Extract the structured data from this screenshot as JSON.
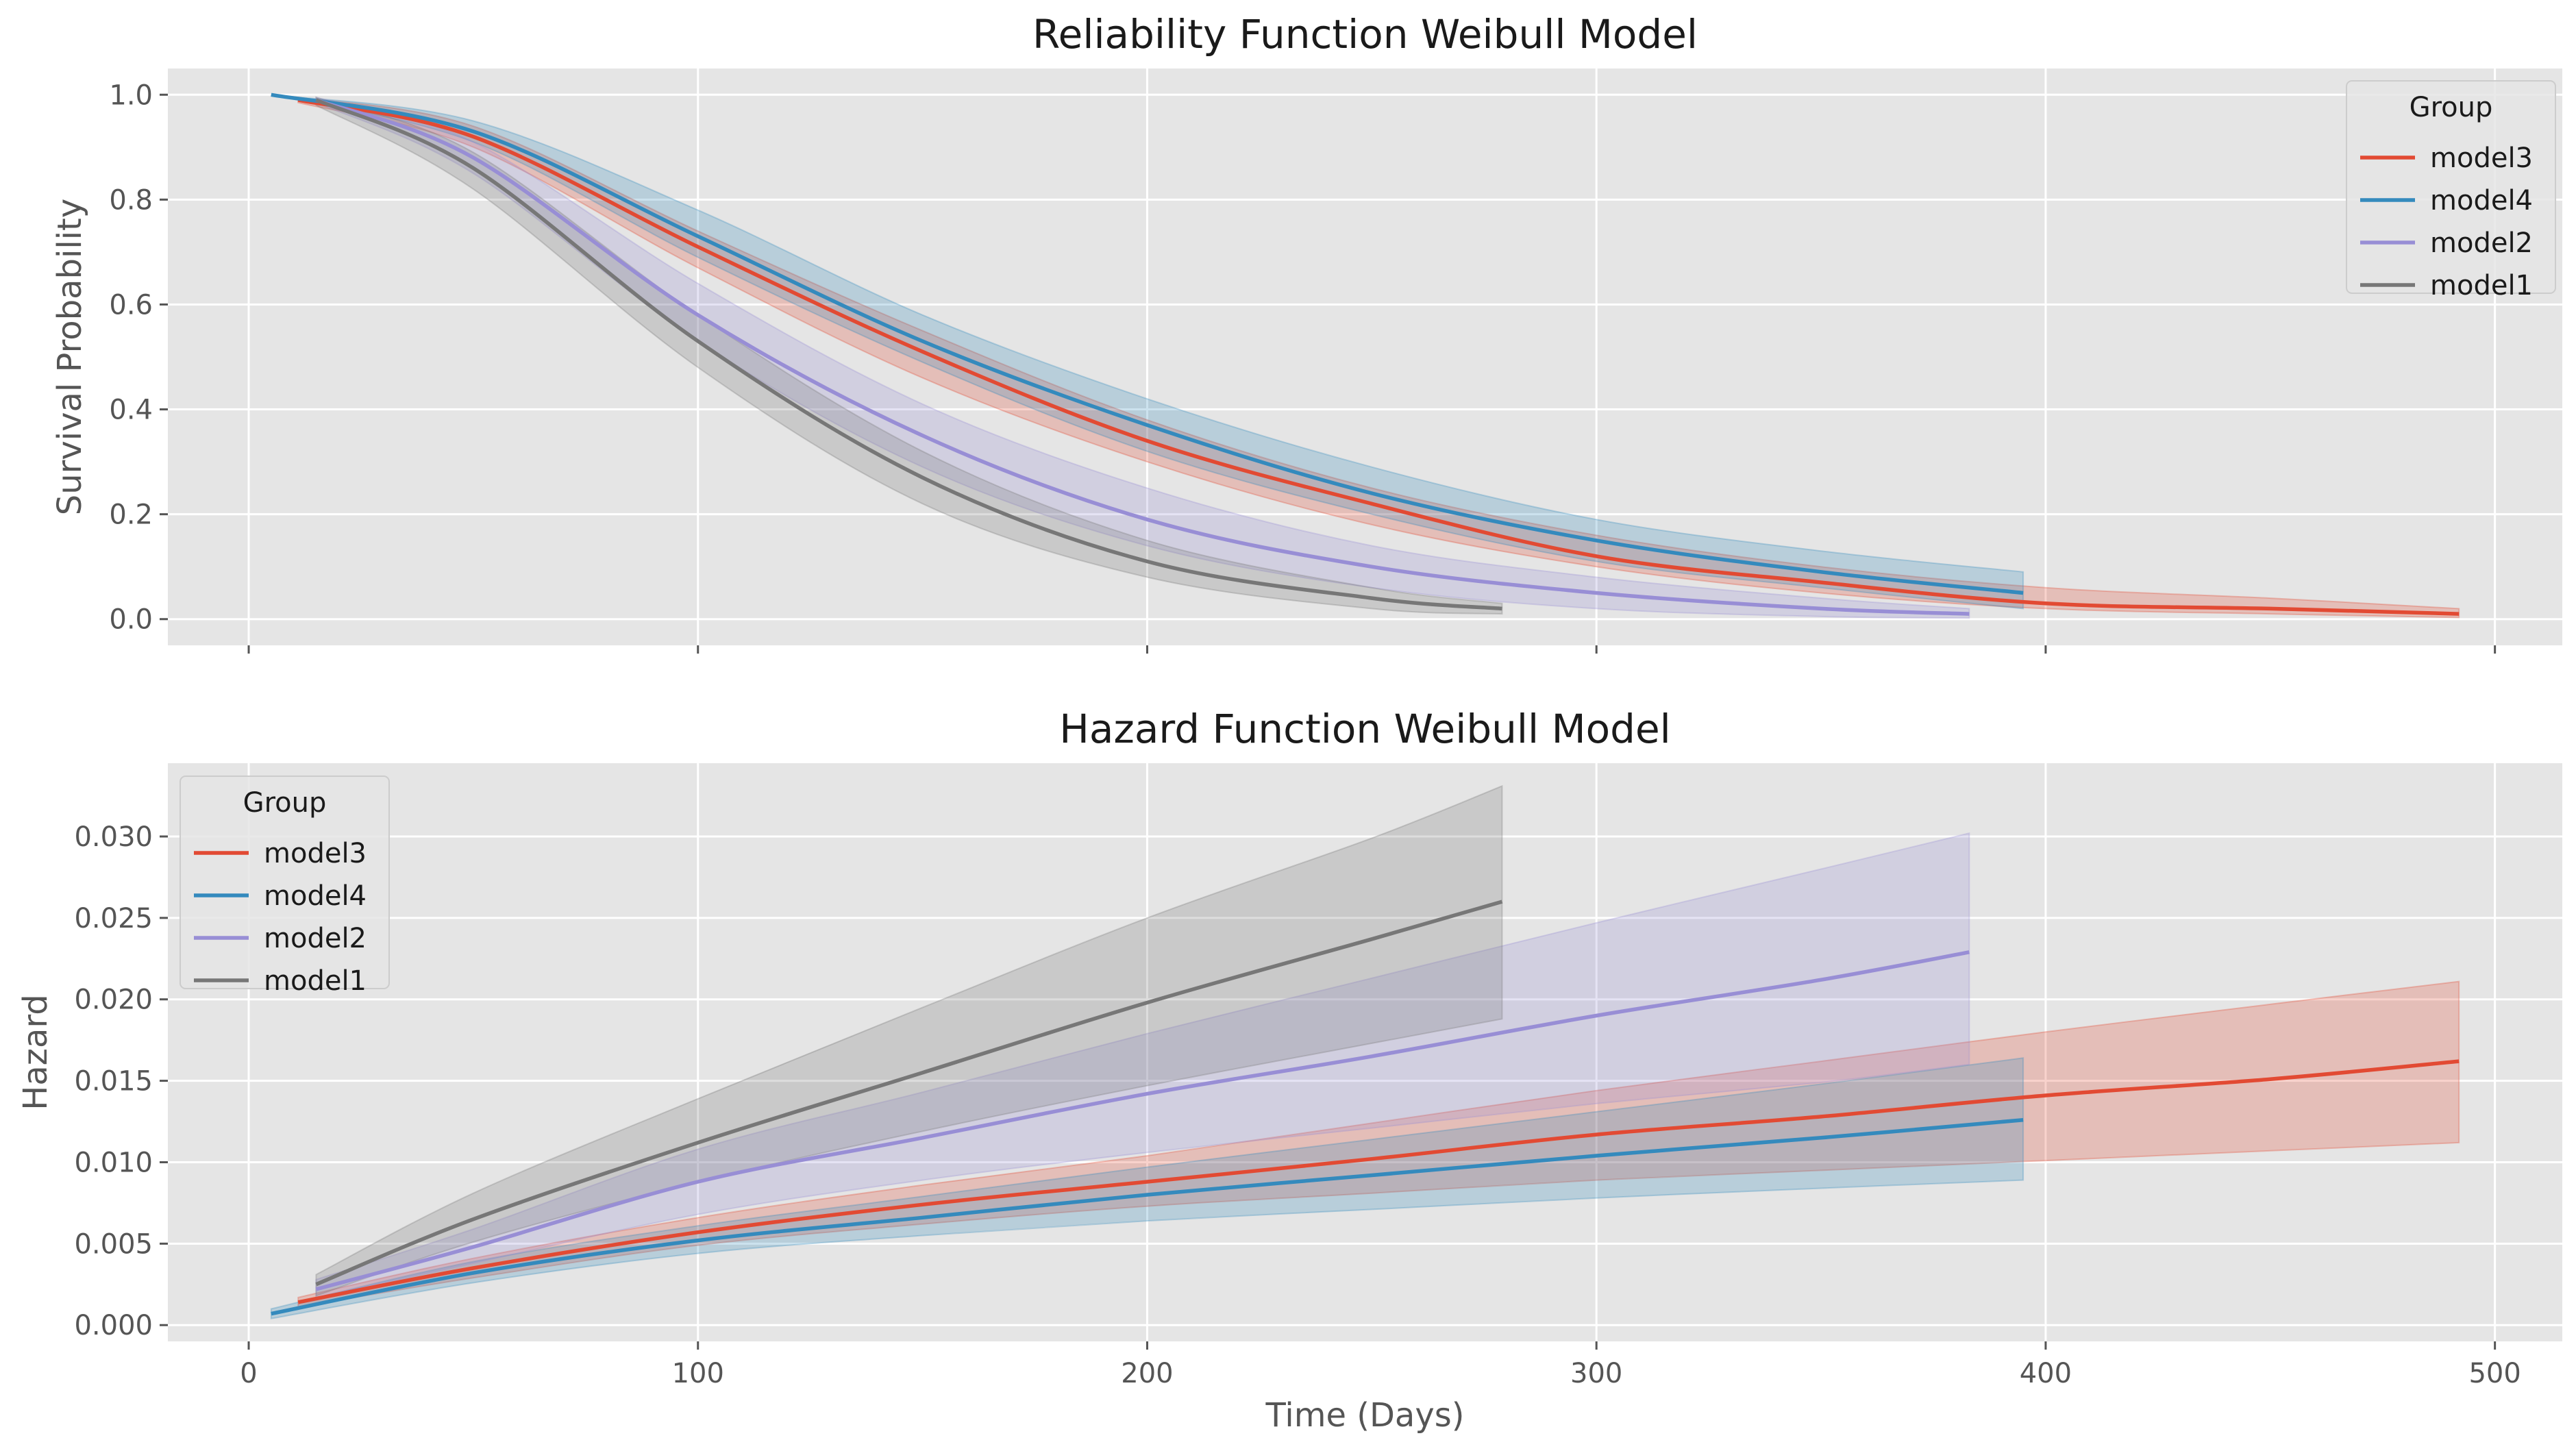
{
  "chart_data": [
    {
      "type": "line",
      "title": "Reliability Function Weibull Model",
      "xlabel": "",
      "ylabel": "Survival Probability",
      "xlim": [
        -18,
        515
      ],
      "ylim": [
        -0.05,
        1.05
      ],
      "xticks": [
        0,
        100,
        200,
        300,
        400,
        500
      ],
      "yticks": [
        0.0,
        0.2,
        0.4,
        0.6,
        0.8,
        1.0
      ],
      "ytick_labels": [
        "0.0",
        "0.2",
        "0.4",
        "0.6",
        "0.8",
        "1.0"
      ],
      "show_xtick_labels": false,
      "grid": true,
      "legend": {
        "title": "Group",
        "placement": "top-right",
        "entries": [
          "model3",
          "model4",
          "model2",
          "model1"
        ]
      },
      "series": [
        {
          "name": "model3",
          "color": "#E24A33",
          "x": [
            11,
            50,
            100,
            150,
            200,
            250,
            300,
            350,
            400,
            450,
            492
          ],
          "y": [
            0.99,
            0.92,
            0.71,
            0.51,
            0.34,
            0.22,
            0.12,
            0.07,
            0.03,
            0.02,
            0.01
          ],
          "lower": [
            0.985,
            0.9,
            0.67,
            0.46,
            0.3,
            0.18,
            0.1,
            0.05,
            0.02,
            0.01,
            0.003
          ],
          "upper": [
            0.995,
            0.94,
            0.74,
            0.55,
            0.38,
            0.25,
            0.16,
            0.1,
            0.06,
            0.04,
            0.02
          ]
        },
        {
          "name": "model4",
          "color": "#348ABD",
          "x": [
            5,
            50,
            100,
            150,
            200,
            250,
            300,
            350,
            395
          ],
          "y": [
            1.0,
            0.93,
            0.73,
            0.53,
            0.37,
            0.24,
            0.15,
            0.09,
            0.05
          ],
          "lower": [
            1.0,
            0.91,
            0.69,
            0.49,
            0.32,
            0.2,
            0.11,
            0.06,
            0.02
          ],
          "upper": [
            1.0,
            0.95,
            0.78,
            0.58,
            0.42,
            0.29,
            0.19,
            0.13,
            0.09
          ]
        },
        {
          "name": "model2",
          "color": "#988ED5",
          "x": [
            15,
            50,
            100,
            150,
            200,
            250,
            300,
            350,
            383
          ],
          "y": [
            0.99,
            0.88,
            0.58,
            0.35,
            0.19,
            0.1,
            0.05,
            0.02,
            0.01
          ],
          "lower": [
            0.985,
            0.85,
            0.53,
            0.29,
            0.14,
            0.06,
            0.02,
            0.005,
            0.002
          ],
          "upper": [
            0.995,
            0.91,
            0.64,
            0.41,
            0.25,
            0.14,
            0.08,
            0.04,
            0.02
          ]
        },
        {
          "name": "model1",
          "color": "#777777",
          "x": [
            15,
            50,
            100,
            150,
            200,
            250,
            279
          ],
          "y": [
            0.99,
            0.86,
            0.53,
            0.27,
            0.11,
            0.04,
            0.02
          ],
          "lower": [
            0.98,
            0.82,
            0.48,
            0.22,
            0.08,
            0.02,
            0.01
          ],
          "upper": [
            0.995,
            0.89,
            0.58,
            0.32,
            0.15,
            0.06,
            0.03
          ]
        }
      ]
    },
    {
      "type": "line",
      "title": "Hazard Function Weibull Model",
      "xlabel": "Time (Days)",
      "ylabel": "Hazard",
      "xlim": [
        -18,
        515
      ],
      "ylim": [
        -0.001,
        0.0345
      ],
      "xticks": [
        0,
        100,
        200,
        300,
        400,
        500
      ],
      "yticks": [
        0.0,
        0.005,
        0.01,
        0.015,
        0.02,
        0.025,
        0.03
      ],
      "ytick_labels": [
        "0.000",
        "0.005",
        "0.010",
        "0.015",
        "0.020",
        "0.025",
        "0.030"
      ],
      "show_xtick_labels": true,
      "grid": true,
      "legend": {
        "title": "Group",
        "placement": "top-left",
        "entries": [
          "model3",
          "model4",
          "model2",
          "model1"
        ]
      },
      "series": [
        {
          "name": "model3",
          "color": "#E24A33",
          "x": [
            11,
            50,
            100,
            150,
            200,
            250,
            300,
            350,
            400,
            450,
            492
          ],
          "y": [
            0.0014,
            0.0035,
            0.0057,
            0.0074,
            0.0088,
            0.0102,
            0.0117,
            0.0128,
            0.0141,
            0.0151,
            0.0162
          ],
          "lower": [
            0.0011,
            0.0029,
            0.0049,
            0.0062,
            0.0073,
            0.0081,
            0.0089,
            0.0095,
            0.0101,
            0.0107,
            0.0112
          ],
          "upper": [
            0.0017,
            0.0041,
            0.0066,
            0.0086,
            0.0104,
            0.0124,
            0.0144,
            0.0162,
            0.018,
            0.0197,
            0.0211
          ]
        },
        {
          "name": "model4",
          "color": "#348ABD",
          "x": [
            5,
            50,
            100,
            150,
            200,
            250,
            300,
            350,
            395
          ],
          "y": [
            0.0007,
            0.0032,
            0.0052,
            0.0066,
            0.008,
            0.0092,
            0.0104,
            0.0115,
            0.0126
          ],
          "lower": [
            0.0004,
            0.0026,
            0.0044,
            0.0055,
            0.0064,
            0.0071,
            0.0078,
            0.0084,
            0.0089
          ],
          "upper": [
            0.001,
            0.0039,
            0.0061,
            0.0079,
            0.0097,
            0.0114,
            0.0131,
            0.0148,
            0.0164
          ]
        },
        {
          "name": "model2",
          "color": "#988ED5",
          "x": [
            15,
            50,
            100,
            150,
            200,
            250,
            300,
            350,
            383
          ],
          "y": [
            0.0022,
            0.0048,
            0.0088,
            0.0115,
            0.0142,
            0.0165,
            0.019,
            0.0212,
            0.0229
          ],
          "lower": [
            0.0017,
            0.0038,
            0.0068,
            0.0089,
            0.0106,
            0.0121,
            0.0136,
            0.0149,
            0.016
          ],
          "upper": [
            0.0028,
            0.0059,
            0.0108,
            0.0143,
            0.0179,
            0.0213,
            0.0247,
            0.028,
            0.0302
          ]
        },
        {
          "name": "model1",
          "color": "#777777",
          "x": [
            15,
            50,
            100,
            150,
            200,
            250,
            279
          ],
          "y": [
            0.0025,
            0.0065,
            0.0112,
            0.0155,
            0.0198,
            0.0237,
            0.026
          ],
          "lower": [
            0.0018,
            0.0051,
            0.0088,
            0.0119,
            0.0147,
            0.0173,
            0.0188
          ],
          "upper": [
            0.0031,
            0.0081,
            0.0139,
            0.0195,
            0.025,
            0.0299,
            0.0331
          ]
        }
      ]
    }
  ]
}
